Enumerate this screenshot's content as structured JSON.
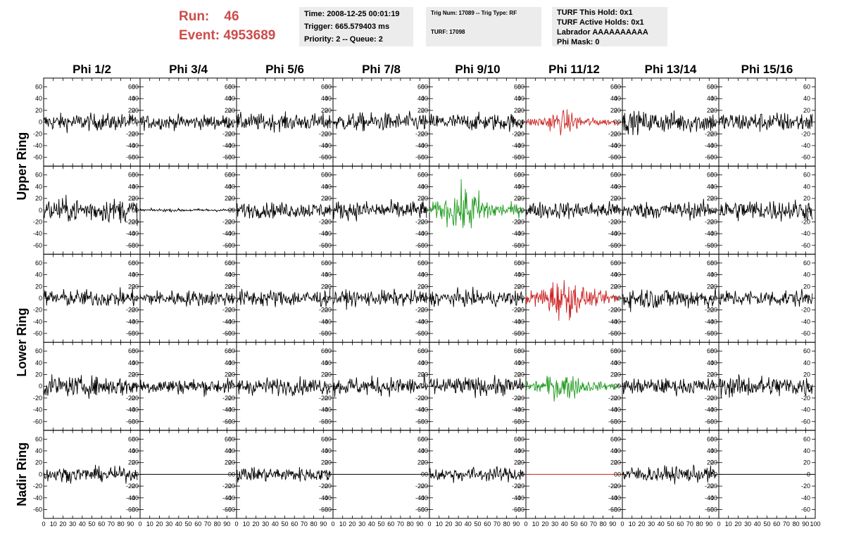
{
  "run_info": {
    "run_label": "Run:",
    "run_value": "46",
    "event_label": "Event:",
    "event_value": "4953689"
  },
  "time_box": {
    "time": "Time: 2008-12-25 00:01:19",
    "trigger": "Trigger: 665.579403 ms",
    "priority": "Priority: 2 -- Queue: 2"
  },
  "trig_box": {
    "trig": "Trig Num: 17089 -- Trig Type: RF",
    "turf": "TURF: 17098"
  },
  "turf_box": {
    "hold": "TURF This Hold: 0x1",
    "active": "TURF Active Holds: 0x1",
    "labrador": "Labrador AAAAAAAAAA",
    "phimask": "Phi Mask: 0"
  },
  "colors": {
    "run_text": "#cd4b4b",
    "normal_trace": "#000000",
    "red_trace": "#cc2020",
    "green_trace": "#1e9a1e",
    "info_bg": "#ececec"
  },
  "chart_data": {
    "type": "line",
    "title": "",
    "columns": [
      "Phi 1/2",
      "Phi 3/4",
      "Phi 5/6",
      "Phi 7/8",
      "Phi 9/10",
      "Phi 11/12",
      "Phi 13/14",
      "Phi 15/16"
    ],
    "ring_labels": [
      "Upper Ring",
      "Lower Ring",
      "Nadir Ring"
    ],
    "ring_row_spans": [
      [
        0,
        1
      ],
      [
        2,
        3
      ],
      [
        4,
        4
      ]
    ],
    "rows": 5,
    "xlim": [
      0,
      100
    ],
    "ylim": [
      -75,
      75
    ],
    "x_ticks": [
      0,
      10,
      20,
      30,
      40,
      50,
      60,
      70,
      80,
      90,
      100
    ],
    "x_tick_labels": [
      "0",
      "10",
      "20",
      "30",
      "40",
      "50",
      "60",
      "70",
      "80",
      "90",
      "100"
    ],
    "y_ticks": [
      -60,
      -40,
      -20,
      0,
      20,
      40,
      60
    ],
    "y_tick_labels": [
      "-60",
      "-40",
      "-20",
      "0",
      "20",
      "40",
      "60"
    ],
    "panels": [
      [
        {
          "style": "noise",
          "amp": 12,
          "color": "black"
        },
        {
          "style": "noise",
          "amp": 10,
          "color": "black"
        },
        {
          "style": "noise",
          "amp": 12,
          "color": "black"
        },
        {
          "style": "noise",
          "amp": 13,
          "color": "black"
        },
        {
          "style": "noise",
          "amp": 12,
          "color": "black"
        },
        {
          "style": "burst",
          "amp": 10,
          "color": "red"
        },
        {
          "style": "noise",
          "amp": 15,
          "color": "black"
        },
        {
          "style": "noise",
          "amp": 14,
          "color": "black"
        }
      ],
      [
        {
          "style": "noise",
          "amp": 17,
          "color": "black"
        },
        {
          "style": "quiet",
          "amp": 2,
          "color": "black"
        },
        {
          "style": "noise",
          "amp": 11,
          "color": "black"
        },
        {
          "style": "noise",
          "amp": 13,
          "color": "black"
        },
        {
          "style": "burst",
          "amp": 20,
          "color": "green"
        },
        {
          "style": "noise",
          "amp": 12,
          "color": "black"
        },
        {
          "style": "noise",
          "amp": 12,
          "color": "black"
        },
        {
          "style": "noise",
          "amp": 15,
          "color": "black"
        }
      ],
      [
        {
          "style": "noise",
          "amp": 12,
          "color": "black"
        },
        {
          "style": "noise",
          "amp": 11,
          "color": "black"
        },
        {
          "style": "noise",
          "amp": 12,
          "color": "black"
        },
        {
          "style": "noise",
          "amp": 11,
          "color": "black"
        },
        {
          "style": "noise",
          "amp": 11,
          "color": "black"
        },
        {
          "style": "burst",
          "amp": 18,
          "color": "red"
        },
        {
          "style": "noise",
          "amp": 15,
          "color": "black"
        },
        {
          "style": "noise",
          "amp": 12,
          "color": "black"
        }
      ],
      [
        {
          "style": "noise",
          "amp": 14,
          "color": "black"
        },
        {
          "style": "noise",
          "amp": 11,
          "color": "black"
        },
        {
          "style": "noise",
          "amp": 12,
          "color": "black"
        },
        {
          "style": "noise",
          "amp": 13,
          "color": "black"
        },
        {
          "style": "noise",
          "amp": 13,
          "color": "black"
        },
        {
          "style": "burst",
          "amp": 12,
          "color": "green"
        },
        {
          "style": "noise",
          "amp": 11,
          "color": "black"
        },
        {
          "style": "noise",
          "amp": 15,
          "color": "black"
        }
      ],
      [
        {
          "style": "noise",
          "amp": 10,
          "color": "black"
        },
        {
          "style": "flat",
          "amp": 0,
          "color": "black"
        },
        {
          "style": "noise",
          "amp": 10,
          "color": "black"
        },
        {
          "style": "flat",
          "amp": 0,
          "color": "black"
        },
        {
          "style": "noise",
          "amp": 10,
          "color": "black"
        },
        {
          "style": "flat",
          "amp": 0,
          "color": "red"
        },
        {
          "style": "noise",
          "amp": 11,
          "color": "black"
        },
        {
          "style": "flat",
          "amp": 0,
          "color": "black"
        }
      ]
    ]
  }
}
